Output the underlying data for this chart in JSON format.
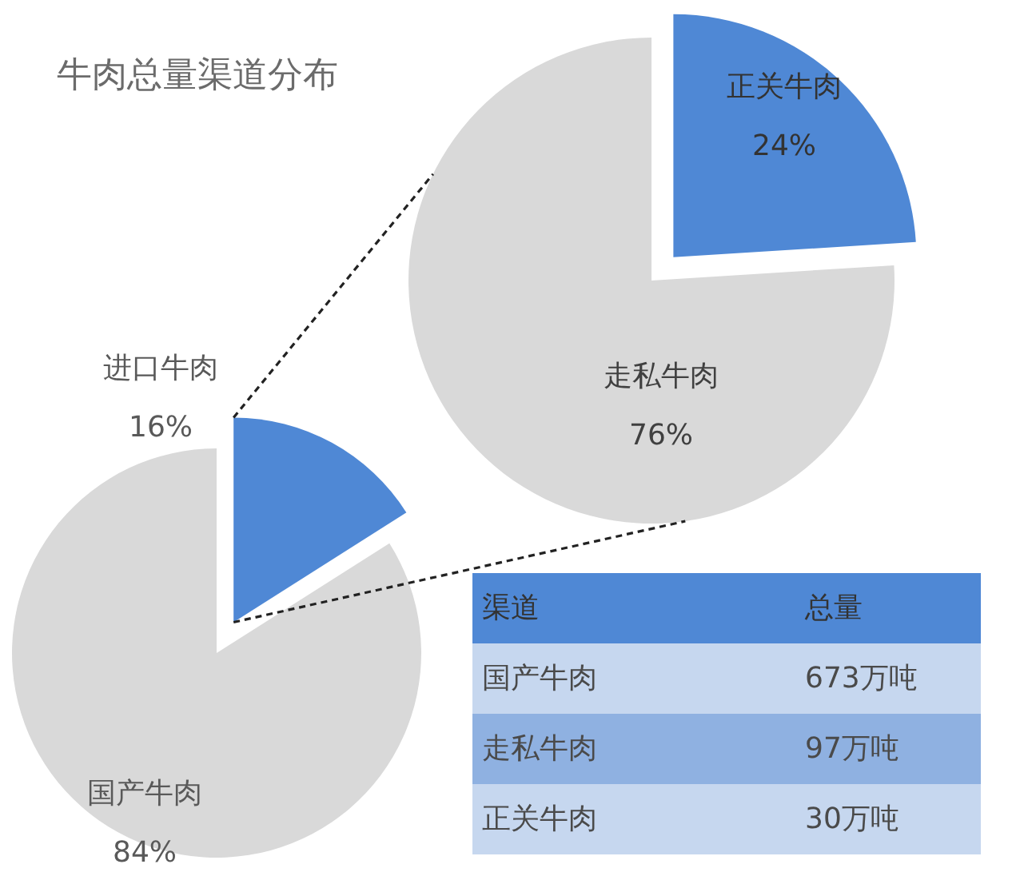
{
  "chart_data": [
    {
      "type": "pie",
      "title": "牛肉总量渠道分布",
      "categories": [
        "正关牛肉",
        "走私牛肉"
      ],
      "values": [
        24,
        76
      ],
      "value_labels": [
        "24%",
        "76%"
      ],
      "colors": [
        "#4f88d5",
        "#d9d9d9"
      ]
    },
    {
      "type": "pie",
      "categories": [
        "进口牛肉",
        "国产牛肉"
      ],
      "values": [
        16,
        84
      ],
      "value_labels": [
        "16%",
        "84%"
      ],
      "colors": [
        "#4f88d5",
        "#d9d9d9"
      ]
    },
    {
      "type": "other",
      "annotations": [
        "渠道",
        "总量",
        "国产牛肉",
        "673万吨",
        "走私牛肉",
        "97万吨",
        "正关牛肉",
        "30万吨"
      ]
    }
  ]
}
